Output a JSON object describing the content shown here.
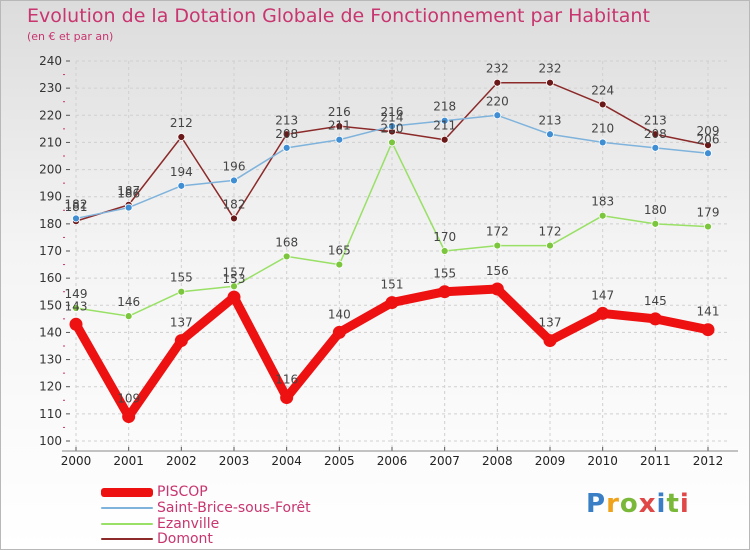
{
  "header": {
    "title": "Evolution de la Dotation Globale de Fonctionnement par Habitant",
    "subtitle": "(en € et par an)"
  },
  "brand": {
    "logo_text": "Proxiti",
    "letter_colors": [
      "#3a7fc6",
      "#f0a21b",
      "#7ab83a",
      "#e04848",
      "#3a7fc6",
      "#7ab83a",
      "#e04848"
    ]
  },
  "chart_data": {
    "type": "line",
    "title": "Evolution de la Dotation Globale de Fonctionnement par Habitant",
    "subtitle": "(en € et par an)",
    "xlabel": "",
    "ylabel": "",
    "categories": [
      "2000",
      "2001",
      "2002",
      "2003",
      "2004",
      "2005",
      "2006",
      "2007",
      "2008",
      "2009",
      "2010",
      "2011",
      "2012"
    ],
    "ylim": [
      100,
      240
    ],
    "yticks": [
      100,
      110,
      120,
      130,
      140,
      150,
      160,
      170,
      180,
      190,
      200,
      210,
      220,
      230,
      240
    ],
    "grid": true,
    "legend_position": "bottom-left",
    "series": [
      {
        "name": "PISCOP",
        "color": "#ee1111",
        "dot_color": "#ee1111",
        "values": [
          143,
          109,
          137,
          153,
          116,
          140,
          151,
          155,
          156,
          137,
          147,
          145,
          141
        ]
      },
      {
        "name": "Saint-Brice-sous-Forêt",
        "color": "#7fb3dc",
        "dot_color": "#3f8ed4",
        "values": [
          182,
          186,
          194,
          196,
          208,
          211,
          216,
          218,
          220,
          213,
          210,
          208,
          206
        ]
      },
      {
        "name": "Ezanville",
        "color": "#99e066",
        "dot_color": "#7cc63d",
        "values": [
          149,
          146,
          155,
          157,
          168,
          165,
          210,
          170,
          172,
          172,
          183,
          180,
          179
        ]
      },
      {
        "name": "Domont",
        "color": "#8c2a2a",
        "dot_color": "#6b1818",
        "values": [
          181,
          187,
          212,
          182,
          213,
          216,
          214,
          211,
          232,
          232,
          224,
          213,
          209
        ]
      }
    ]
  }
}
